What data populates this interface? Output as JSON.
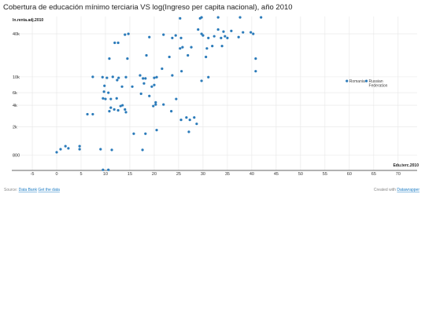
{
  "chart_data": {
    "type": "scatter",
    "title": "Cobertura de educación mínimo terciaria VS log(Ingreso per capita nacional), año 2010",
    "x_label": "Edu.terc.2010",
    "y_label": "ln.renta.adj.2010",
    "source_prefix": "Source:",
    "source_link": "Data Bank",
    "get_data": "Get the data",
    "credit_prefix": "Created with",
    "credit_link": "Datawrapper",
    "color": "#2b7bba",
    "log_y": true,
    "grid": true,
    "xlim": [
      -9.2,
      73.9
    ],
    "ylim": [
      490,
      70000
    ],
    "xticks": [
      -5,
      0,
      5,
      10,
      15,
      20,
      25,
      30,
      35,
      40,
      45,
      50,
      55,
      60,
      65,
      70
    ],
    "yticks": [
      {
        "value": 800,
        "label": "800"
      },
      {
        "value": 2000,
        "label": "2k"
      },
      {
        "value": 4000,
        "label": "4k"
      },
      {
        "value": 6000,
        "label": "6k"
      },
      {
        "value": 10000,
        "label": "10k"
      },
      {
        "value": 40000,
        "label": "40k"
      }
    ],
    "x": [
      25.3,
      29.4,
      29.7,
      37.6,
      41.9,
      33.1,
      29.0,
      33.1,
      34.2,
      35.8,
      24.4,
      21.9,
      25.5,
      19.0,
      23.7,
      29.7,
      31.1,
      32.3,
      30.0,
      33.7,
      34.5,
      38.2,
      39.8,
      40.3,
      37.3,
      35.0,
      14.0,
      14.7,
      11.9,
      12.6,
      25.3,
      25.8,
      27.6,
      30.8,
      30.6,
      31.9,
      33.9,
      40.8,
      40.8,
      26.9,
      23.1,
      18.4,
      14.5,
      10.8,
      21.6,
      25.6,
      20.5,
      23.7,
      7.4,
      9.4,
      10.3,
      11.5,
      12.7,
      14.2,
      17.1,
      17.7,
      18.2,
      20.0,
      20.0,
      17.9,
      19.5,
      31.1,
      29.7,
      12.4,
      13.4,
      15.5,
      9.8,
      9.7,
      10.6,
      9.5,
      10.0,
      12.3,
      17.3,
      19.0,
      20.3,
      24.5,
      13.5,
      14.0,
      11.1,
      11.8,
      12.6,
      13.1,
      11.1,
      6.3,
      7.4,
      10.8,
      14.2,
      19.8,
      20.3,
      21.9,
      23.5,
      26.6,
      28.2,
      28.7,
      27.3,
      25.5,
      20.5,
      27.1,
      15.8,
      18.2,
      0,
      0.8,
      1.8,
      2.4,
      4.7,
      4.7,
      9.0,
      11.3,
      17.6,
      9.5,
      10.6,
      59.5,
      63.5
    ],
    "y": [
      66000,
      66000,
      68000,
      68000,
      68000,
      68000,
      46000,
      46000,
      43000,
      44000,
      38000,
      39000,
      35000,
      36000,
      35000,
      40000,
      35000,
      37000,
      38000,
      35000,
      37000,
      42000,
      42000,
      40000,
      36000,
      35000,
      39000,
      40000,
      30000,
      30000,
      25000,
      26000,
      26000,
      25000,
      19000,
      27000,
      27000,
      18000,
      12000,
      20000,
      19000,
      20000,
      18000,
      18000,
      13000,
      12000,
      9900,
      10500,
      10000,
      9900,
      9700,
      10000,
      9700,
      9900,
      10500,
      9500,
      9500,
      9700,
      7700,
      8100,
      7300,
      9900,
      8800,
      9000,
      7300,
      7300,
      7500,
      6200,
      6000,
      5000,
      4900,
      5000,
      5800,
      5400,
      4400,
      4900,
      4000,
      3500,
      3700,
      3500,
      3400,
      3900,
      4900,
      3000,
      3000,
      3300,
      3200,
      3900,
      4100,
      4100,
      3300,
      2700,
      2700,
      2200,
      2500,
      2500,
      1800,
      1700,
      1600,
      1600,
      880,
      970,
      1070,
      1000,
      1070,
      970,
      970,
      950,
      950,
      500,
      500,
      8750,
      8750
    ],
    "point_labels": [
      null,
      null,
      null,
      null,
      null,
      null,
      null,
      null,
      null,
      null,
      null,
      null,
      null,
      null,
      null,
      null,
      null,
      null,
      null,
      null,
      null,
      null,
      null,
      null,
      null,
      null,
      null,
      null,
      null,
      null,
      null,
      null,
      null,
      null,
      null,
      null,
      null,
      null,
      null,
      null,
      null,
      null,
      null,
      null,
      null,
      null,
      null,
      null,
      null,
      null,
      null,
      null,
      null,
      null,
      null,
      null,
      null,
      null,
      null,
      null,
      null,
      null,
      null,
      null,
      null,
      null,
      null,
      null,
      null,
      null,
      null,
      null,
      null,
      null,
      null,
      null,
      null,
      null,
      null,
      null,
      null,
      null,
      null,
      null,
      null,
      null,
      null,
      null,
      null,
      null,
      null,
      null,
      null,
      null,
      null,
      null,
      null,
      null,
      null,
      null,
      null,
      null,
      null,
      null,
      null,
      null,
      null,
      null,
      null,
      null,
      null,
      "Romania",
      "Russian Federation"
    ]
  }
}
